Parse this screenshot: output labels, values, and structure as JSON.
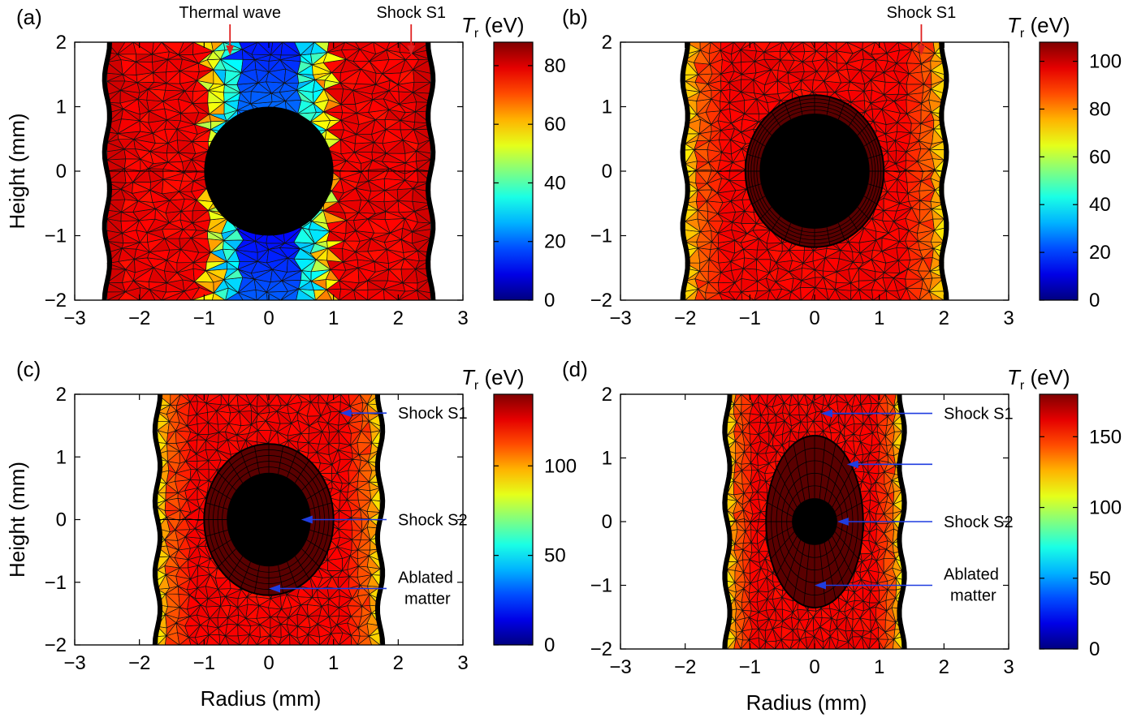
{
  "chart_data": [
    {
      "panel_label": "(a)",
      "type": "heatmap",
      "ylabel": "Height (mm)",
      "xlabel": "",
      "xlim": [
        -3,
        3
      ],
      "ylim": [
        -2,
        2
      ],
      "xticks": [
        -3,
        -2,
        -1,
        0,
        1,
        2,
        3
      ],
      "yticks": [
        -2,
        -1,
        0,
        1,
        2
      ],
      "domain_half_width": 2.5,
      "core_radius": 1.0,
      "core_height_ratio": 1.0,
      "cold_band_width": 0.95,
      "ablation_layer": 0,
      "colorbar": {
        "label": "T",
        "sub": "r",
        "unit": " (eV)",
        "min": 0,
        "max": 88,
        "ticks": [
          0,
          20,
          40,
          60,
          80
        ]
      },
      "annotations": [
        {
          "text": "Thermal wave",
          "target": [
            -0.6,
            2.0
          ],
          "color": "#e02020",
          "style": "down"
        },
        {
          "text": "Shock S1",
          "target": [
            2.2,
            2.0
          ],
          "color": "#e02020",
          "style": "down"
        }
      ]
    },
    {
      "panel_label": "(b)",
      "type": "heatmap",
      "ylabel": "",
      "xlabel": "",
      "xlim": [
        -3,
        3
      ],
      "ylim": [
        -2,
        2
      ],
      "xticks": [
        -3,
        -2,
        -1,
        0,
        1,
        2,
        3
      ],
      "yticks": [
        -2,
        -1,
        0,
        1,
        2
      ],
      "domain_half_width": 2.0,
      "core_radius": 0.85,
      "core_height_ratio": 1.05,
      "cold_band_width": 0,
      "ablation_layer": 0.22,
      "colorbar": {
        "label": "T",
        "sub": "r",
        "unit": " (eV)",
        "min": 0,
        "max": 108,
        "ticks": [
          0,
          20,
          40,
          60,
          80,
          100
        ]
      },
      "annotations": [
        {
          "text": "Shock S1",
          "target": [
            1.65,
            2.0
          ],
          "color": "#e02020",
          "style": "down"
        }
      ]
    },
    {
      "panel_label": "(c)",
      "type": "heatmap",
      "ylabel": "Height (mm)",
      "xlabel": "Radius (mm)",
      "xlim": [
        -3,
        3
      ],
      "ylim": [
        -2,
        2
      ],
      "xticks": [
        -3,
        -2,
        -1,
        0,
        1,
        2,
        3
      ],
      "yticks": [
        -2,
        -1,
        0,
        1,
        2
      ],
      "domain_half_width": 1.72,
      "core_radius": 0.65,
      "core_height_ratio": 1.15,
      "cold_band_width": 0,
      "ablation_layer": 0.35,
      "colorbar": {
        "label": "T",
        "sub": "r",
        "unit": " (eV)",
        "min": 0,
        "max": 140,
        "ticks": [
          0,
          50,
          100
        ]
      },
      "annotations": [
        {
          "text": "Shock S1",
          "target": [
            1.1,
            1.7
          ],
          "color": "#1f3de0",
          "style": "left"
        },
        {
          "text": "Shock S2",
          "target": [
            0.5,
            0.0
          ],
          "color": "#1f3de0",
          "style": "left"
        },
        {
          "text": "Ablated",
          "text2": "matter",
          "target": [
            0.0,
            -1.1
          ],
          "color": "#1f3de0",
          "style": "left"
        }
      ]
    },
    {
      "panel_label": "(d)",
      "type": "heatmap",
      "ylabel": "",
      "xlabel": "Radius (mm)",
      "xlim": [
        -3,
        3
      ],
      "ylim": [
        -2,
        2
      ],
      "xticks": [
        -3,
        -2,
        -1,
        0,
        1,
        2,
        3
      ],
      "yticks": [
        -2,
        -1,
        0,
        1,
        2
      ],
      "domain_half_width": 1.35,
      "core_radius": 0.35,
      "core_height_ratio": 1.05,
      "cold_band_width": 0,
      "ablation_layer": 0.4,
      "ablation_height_ratio": 2.15,
      "colorbar": {
        "label": "T",
        "sub": "r",
        "unit": " (eV)",
        "min": 0,
        "max": 180,
        "ticks": [
          0,
          50,
          100,
          150
        ]
      },
      "annotations": [
        {
          "text": "Shock S1",
          "target": [
            0.1,
            1.7
          ],
          "color": "#1f3de0",
          "style": "left"
        },
        {
          "text": "",
          "target": [
            0.5,
            0.9
          ],
          "color": "#1f3de0",
          "style": "left"
        },
        {
          "text": "Shock S2",
          "target": [
            0.35,
            0.0
          ],
          "color": "#1f3de0",
          "style": "left"
        },
        {
          "text": "Ablated",
          "text2": "matter",
          "target": [
            0.0,
            -1.0
          ],
          "color": "#1f3de0",
          "style": "left"
        }
      ]
    }
  ]
}
